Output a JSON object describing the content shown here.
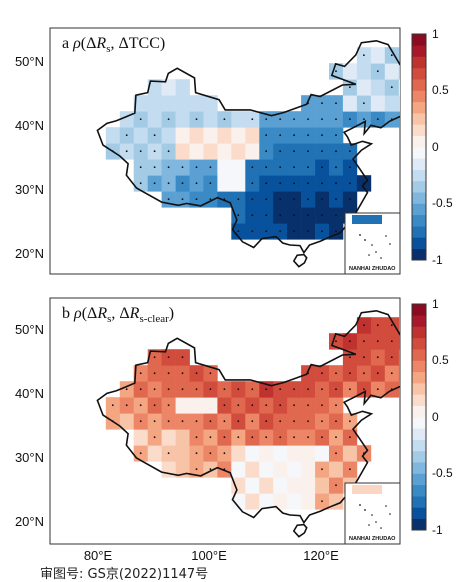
{
  "figure": {
    "caption": "审图号: GS京(2022)1147号",
    "x_ticks": [
      "80°E",
      "100°E",
      "120°E"
    ],
    "y_ticks": [
      "50°N",
      "40°N",
      "30°N",
      "20°N"
    ],
    "colorbar_ticks": [
      "1",
      "0.5",
      "0",
      "-0.5",
      "-1"
    ],
    "inset_label": "NANHAI ZHUDAO",
    "colors": {
      "strong_negative": "#08519c",
      "negative": "#6baed6",
      "neutral": "#f7f7f7",
      "positive": "#f4a582",
      "strong_positive": "#b2182b"
    }
  },
  "panels": [
    {
      "id": "a",
      "letter": "a",
      "rho": "ρ",
      "t1_pre": "(Δ",
      "t1_var": "R",
      "t1_sub": "s",
      "t1_post": ", ΔTCC)",
      "description_colormap": "diverging blue-white-red",
      "field": "correlation between dRs and dTCC, predominantly negative over China"
    },
    {
      "id": "b",
      "letter": "b",
      "rho": "ρ",
      "t1_pre": "(Δ",
      "t1_var": "R",
      "t1_sub": "s",
      "t1_mid": ", Δ",
      "t2_var": "R",
      "t2_sub": "s-clear",
      "t1_post": ")",
      "field": "correlation between dRs and dRs-clear, predominantly positive over China"
    }
  ]
}
